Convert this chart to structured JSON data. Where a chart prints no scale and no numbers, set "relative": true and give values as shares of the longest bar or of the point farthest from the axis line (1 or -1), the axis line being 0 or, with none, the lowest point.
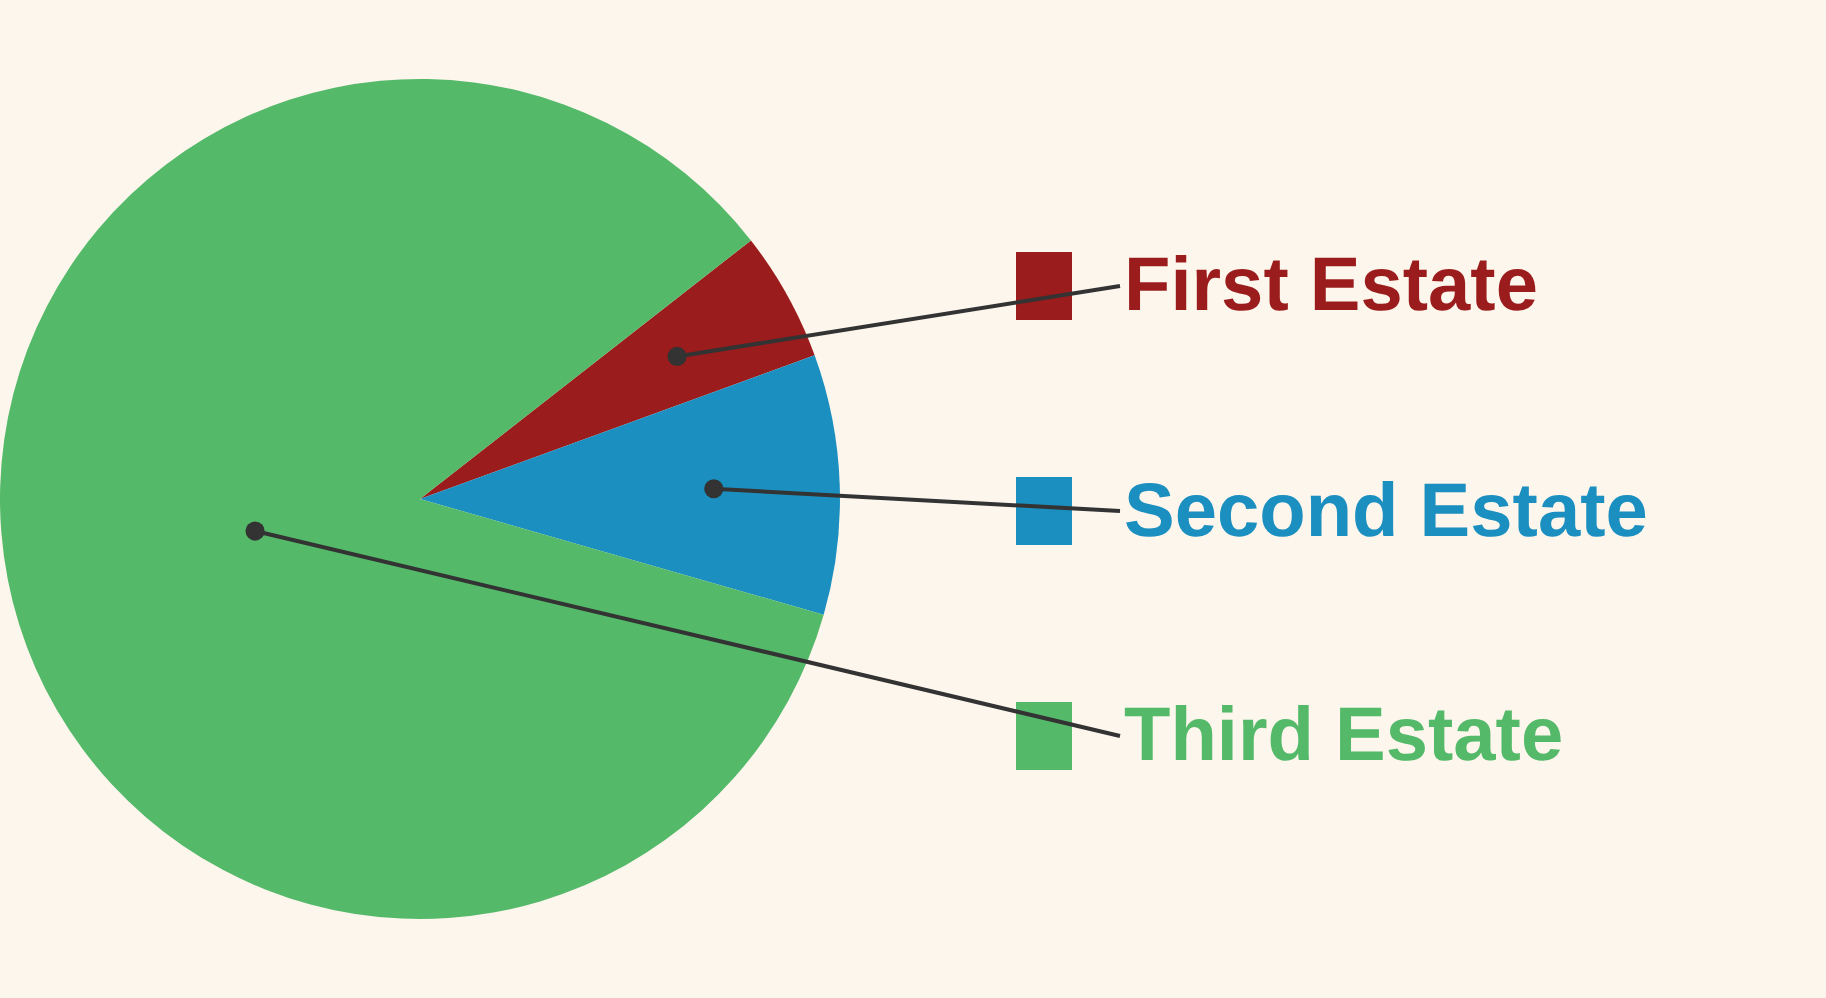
{
  "chart_data": {
    "type": "pie",
    "relative": true,
    "categories": [
      "First Estate",
      "Second Estate",
      "Third Estate"
    ],
    "values": [
      5,
      10,
      85
    ],
    "colors": [
      "#9b1c1c",
      "#1a8fc0",
      "#55b96a"
    ],
    "legend": "right"
  }
}
